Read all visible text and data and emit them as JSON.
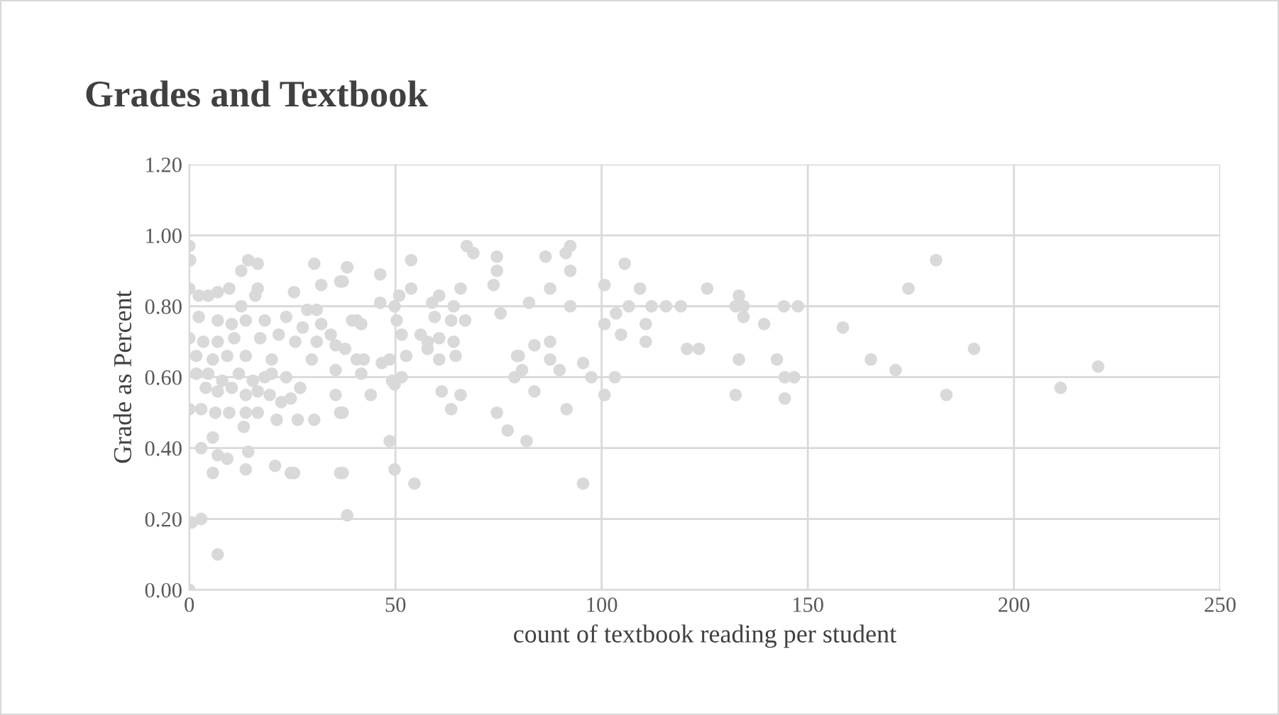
{
  "chart_data": {
    "type": "scatter",
    "title": "Grades and Textbook",
    "xlabel": "count of textbook reading per student",
    "ylabel": "Grade as Percent",
    "xlim": [
      0,
      250
    ],
    "xticks": [
      0,
      50,
      100,
      150,
      200,
      250
    ],
    "ylim": [
      0,
      1.2
    ],
    "yticks": [
      {
        "value": 0,
        "label": "0.00"
      },
      {
        "value": 0.2,
        "label": "0.20"
      },
      {
        "value": 0.4,
        "label": "0.40"
      },
      {
        "value": 0.6,
        "label": "0.60"
      },
      {
        "value": 0.8,
        "label": "0.80"
      },
      {
        "value": 1.0,
        "label": "1.00"
      },
      {
        "value": 1.2,
        "label": "1.20"
      }
    ],
    "grid": true,
    "marker": "circle",
    "series": [
      {
        "color": "#d9d9d9",
        "x": [
          0,
          0.2,
          0,
          2.3,
          4.6,
          6.9,
          9.7,
          12.6,
          14.3,
          16.6,
          16.6,
          16.0,
          12.6,
          30.3,
          32.0,
          36.6,
          38.3,
          25.4,
          28.6,
          30.9,
          2.3,
          6.9,
          10.3,
          13.7,
          18.3,
          23.5,
          27.5,
          32.0,
          34.3,
          39.5,
          0,
          3.4,
          6.9,
          10.9,
          17.2,
          21.7,
          25.7,
          30.9,
          35.5,
          37.8,
          1.7,
          5.7,
          9.2,
          13.7,
          20.0,
          29.7,
          35.5,
          1.7,
          4.6,
          8.0,
          12.0,
          15.4,
          18.3,
          20.0,
          23.5,
          26.9,
          4.0,
          6.9,
          10.3,
          13.7,
          16.6,
          19.5,
          22.3,
          24.6,
          35.5,
          0,
          2.9,
          6.3,
          9.7,
          13.7,
          16.6,
          21.2,
          26.3,
          30.3,
          36.6,
          13.2,
          5.7,
          2.9,
          6.9,
          9.2,
          14.3,
          5.7,
          13.7,
          20.8,
          24.6,
          25.4,
          36.6,
          0.6,
          2.9,
          6.9,
          0,
          38.3,
          38.3,
          37.2,
          46.3,
          53.8,
          67.3,
          68.9,
          74.6,
          74.6,
          73.8,
          65.8,
          53.8,
          50.9,
          49.8,
          46.3,
          58.9,
          60.6,
          59.5,
          64.1,
          63.5,
          66.9,
          75.5,
          40.6,
          41.7,
          50.3,
          51.5,
          56.1,
          57.8,
          60.6,
          64.1,
          57.8,
          40.6,
          42.3,
          46.7,
          48.6,
          52.6,
          60.6,
          64.6,
          41.7,
          49.2,
          51.5,
          49.8,
          44.0,
          61.2,
          65.8,
          63.5,
          37.2,
          74.6,
          77.2,
          48.6,
          49.8,
          54.6,
          37.2,
          79.5,
          78.9,
          86.4,
          91.3,
          92.4,
          92.4,
          87.5,
          82.4,
          92.4,
          105.6,
          100.7,
          109.3,
          106.6,
          112.1,
          115.6,
          119.2,
          103.5,
          100.7,
          110.7,
          104.7,
          110.7,
          120.7,
          83.7,
          87.5,
          79.9,
          87.5,
          89.8,
          80.7,
          95.5,
          97.5,
          103.2,
          100.7,
          83.7,
          91.5,
          81.8,
          95.5,
          125.6,
          133.3,
          132.5,
          134.4,
          134.4,
          139.4,
          144.2,
          147.6,
          123.6,
          133.3,
          142.5,
          144.4,
          146.7,
          132.5,
          144.4,
          158.5,
          181.1,
          174.4,
          190.3,
          165.3,
          171.3,
          183.6,
          211.3,
          220.4
        ],
        "values": [
          0.97,
          0.93,
          0.85,
          0.83,
          0.83,
          0.84,
          0.85,
          0.9,
          0.93,
          0.92,
          0.85,
          0.83,
          0.8,
          0.92,
          0.86,
          0.87,
          0.91,
          0.84,
          0.79,
          0.79,
          0.77,
          0.76,
          0.75,
          0.76,
          0.76,
          0.77,
          0.74,
          0.75,
          0.72,
          0.76,
          0.71,
          0.7,
          0.7,
          0.71,
          0.71,
          0.72,
          0.7,
          0.7,
          0.69,
          0.68,
          0.66,
          0.65,
          0.66,
          0.66,
          0.65,
          0.65,
          0.62,
          0.61,
          0.61,
          0.59,
          0.61,
          0.59,
          0.6,
          0.61,
          0.6,
          0.57,
          0.57,
          0.56,
          0.57,
          0.55,
          0.56,
          0.55,
          0.53,
          0.54,
          0.55,
          0.51,
          0.51,
          0.5,
          0.5,
          0.5,
          0.5,
          0.48,
          0.48,
          0.48,
          0.5,
          0.46,
          0.43,
          0.4,
          0.38,
          0.37,
          0.39,
          0.33,
          0.34,
          0.35,
          0.33,
          0.33,
          0.33,
          0.19,
          0.2,
          0.1,
          0.0,
          0.21,
          0.91,
          0.87,
          0.89,
          0.93,
          0.97,
          0.95,
          0.94,
          0.9,
          0.86,
          0.85,
          0.85,
          0.83,
          0.8,
          0.81,
          0.81,
          0.83,
          0.77,
          0.8,
          0.76,
          0.76,
          0.78,
          0.76,
          0.75,
          0.76,
          0.72,
          0.72,
          0.7,
          0.71,
          0.7,
          0.68,
          0.65,
          0.65,
          0.64,
          0.65,
          0.66,
          0.65,
          0.66,
          0.61,
          0.59,
          0.6,
          0.58,
          0.55,
          0.56,
          0.55,
          0.51,
          0.5,
          0.5,
          0.45,
          0.42,
          0.34,
          0.3,
          0.33,
          0.66,
          0.6,
          0.94,
          0.95,
          0.97,
          0.9,
          0.85,
          0.81,
          0.8,
          0.92,
          0.86,
          0.85,
          0.8,
          0.8,
          0.8,
          0.8,
          0.78,
          0.75,
          0.75,
          0.72,
          0.7,
          0.68,
          0.69,
          0.7,
          0.66,
          0.65,
          0.62,
          0.62,
          0.64,
          0.6,
          0.6,
          0.55,
          0.56,
          0.51,
          0.42,
          0.3,
          0.85,
          0.83,
          0.8,
          0.8,
          0.77,
          0.75,
          0.8,
          0.8,
          0.68,
          0.65,
          0.65,
          0.6,
          0.6,
          0.55,
          0.54,
          0.74,
          0.93,
          0.85,
          0.68,
          0.65,
          0.62,
          0.55,
          0.57,
          0.63
        ]
      }
    ]
  }
}
